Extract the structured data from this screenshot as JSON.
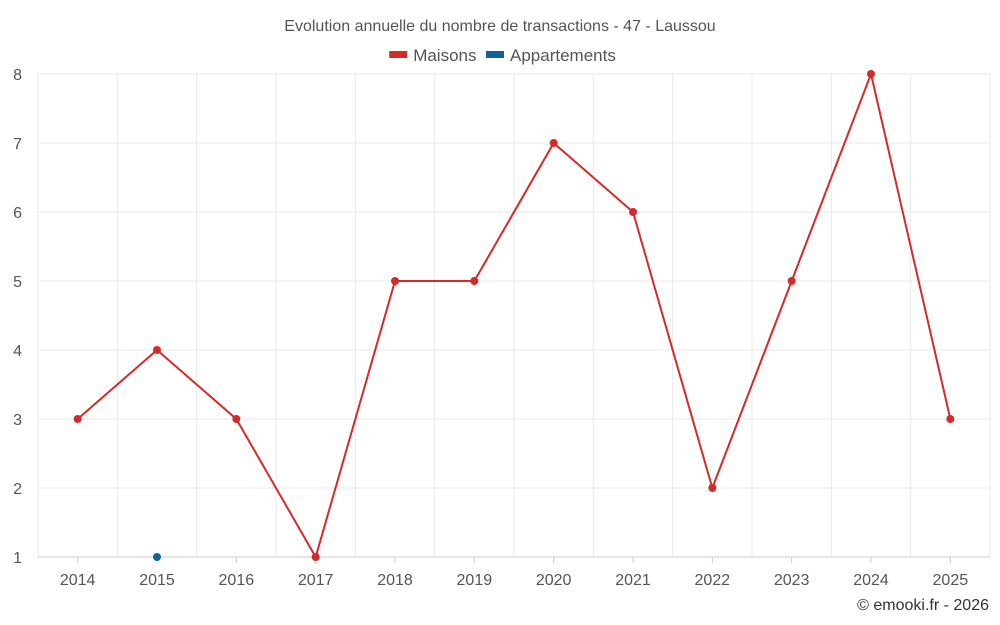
{
  "chart_data": {
    "type": "line",
    "title": "Evolution annuelle du nombre de transactions - 47 - Laussou",
    "categories": [
      "2014",
      "2015",
      "2016",
      "2017",
      "2018",
      "2019",
      "2020",
      "2021",
      "2022",
      "2023",
      "2024",
      "2025"
    ],
    "series": [
      {
        "name": "Maisons",
        "color": "#d42a2a",
        "values": [
          3,
          4,
          3,
          1,
          5,
          5,
          7,
          6,
          2,
          5,
          8,
          3
        ]
      },
      {
        "name": "Appartements",
        "color": "#0e639c",
        "values": [
          null,
          1,
          null,
          null,
          null,
          null,
          null,
          null,
          null,
          null,
          null,
          null
        ]
      }
    ],
    "y_ticks": [
      1,
      2,
      3,
      4,
      5,
      6,
      7,
      8
    ],
    "ylim": [
      1,
      8
    ],
    "xlabel": "",
    "ylabel": "",
    "grid": true,
    "legend_position": "top-center"
  },
  "credit": "© emooki.fr - 2026"
}
